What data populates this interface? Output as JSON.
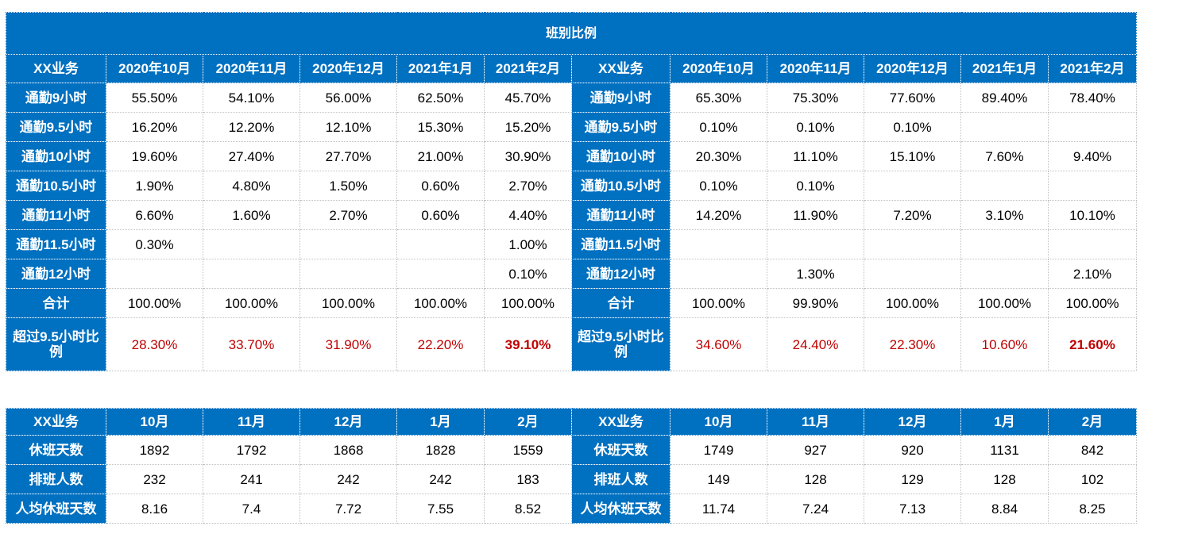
{
  "table1": {
    "title": "班别比例",
    "header": [
      "XX业务",
      "2020年10月",
      "2020年11月",
      "2020年12月",
      "2021年1月",
      "2021年2月",
      "XX业务",
      "2020年10月",
      "2020年11月",
      "2020年12月",
      "2021年1月",
      "2021年2月"
    ],
    "rows": [
      [
        "通勤9小时",
        "55.50%",
        "54.10%",
        "56.00%",
        "62.50%",
        "45.70%",
        "通勤9小时",
        "65.30%",
        "75.30%",
        "77.60%",
        "89.40%",
        "78.40%"
      ],
      [
        "通勤9.5小时",
        "16.20%",
        "12.20%",
        "12.10%",
        "15.30%",
        "15.20%",
        "通勤9.5小时",
        "0.10%",
        "0.10%",
        "0.10%",
        null,
        null
      ],
      [
        "通勤10小时",
        "19.60%",
        "27.40%",
        "27.70%",
        "21.00%",
        "30.90%",
        "通勤10小时",
        "20.30%",
        "11.10%",
        "15.10%",
        "7.60%",
        "9.40%"
      ],
      [
        "通勤10.5小时",
        "1.90%",
        "4.80%",
        "1.50%",
        "0.60%",
        "2.70%",
        "通勤10.5小时",
        "0.10%",
        "0.10%",
        null,
        null,
        null
      ],
      [
        "通勤11小时",
        "6.60%",
        "1.60%",
        "2.70%",
        "0.60%",
        "4.40%",
        "通勤11小时",
        "14.20%",
        "11.90%",
        "7.20%",
        "3.10%",
        "10.10%"
      ],
      [
        "通勤11.5小时",
        "0.30%",
        null,
        null,
        null,
        "1.00%",
        "通勤11.5小时",
        null,
        null,
        null,
        null,
        null
      ],
      [
        "通勤12小时",
        null,
        null,
        null,
        null,
        "0.10%",
        "通勤12小时",
        null,
        "1.30%",
        null,
        null,
        "2.10%"
      ],
      [
        "合计",
        "100.00%",
        "100.00%",
        "100.00%",
        "100.00%",
        "100.00%",
        "合计",
        "100.00%",
        "99.90%",
        "100.00%",
        "100.00%",
        "100.00%"
      ],
      [
        "超过9.5小时比例",
        "28.30%",
        "33.70%",
        "31.90%",
        "22.20%",
        "39.10%",
        "超过9.5小时比例",
        "34.60%",
        "24.40%",
        "22.30%",
        "10.60%",
        "21.60%"
      ]
    ]
  },
  "table2": {
    "header": [
      "XX业务",
      "10月",
      "11月",
      "12月",
      "1月",
      "2月",
      "XX业务",
      "10月",
      "11月",
      "12月",
      "1月",
      "2月"
    ],
    "rows": [
      [
        "休班天数",
        "1892",
        "1792",
        "1868",
        "1828",
        "1559",
        "休班天数",
        "1749",
        "927",
        "920",
        "1131",
        "842"
      ],
      [
        "排班人数",
        "232",
        "241",
        "242",
        "242",
        "183",
        "排班人数",
        "149",
        "128",
        "129",
        "128",
        "102"
      ],
      [
        "人均休班天数",
        "8.16",
        "7.4",
        "7.72",
        "7.55",
        "8.52",
        "人均休班天数",
        "11.74",
        "7.24",
        "7.13",
        "8.84",
        "8.25"
      ]
    ]
  }
}
